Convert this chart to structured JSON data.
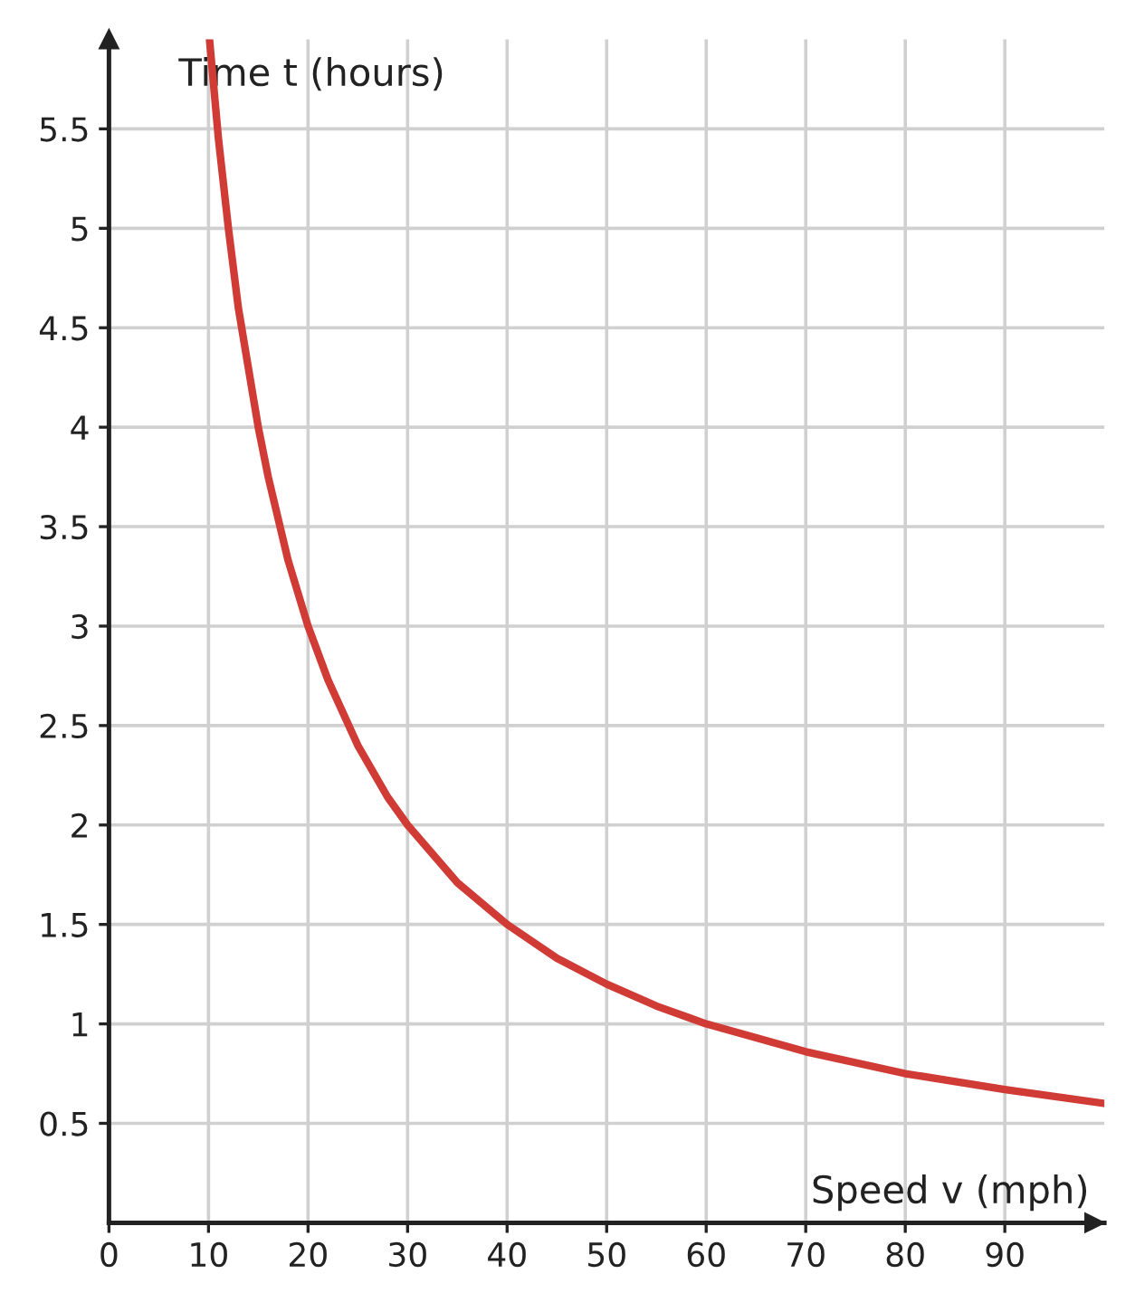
{
  "chart_data": {
    "type": "line",
    "xlabel": "Speed v (mph)",
    "ylabel": "Time t (hours)",
    "xlim": [
      0,
      100
    ],
    "ylim": [
      0,
      5.95
    ],
    "xticks": [
      {
        "value": 0,
        "label": "0"
      },
      10,
      20,
      30,
      40,
      50,
      60,
      70,
      80,
      90
    ],
    "yticks": [
      0.5,
      1,
      1.5,
      2,
      2.5,
      3,
      3.5,
      4,
      4.5,
      5,
      5.5
    ],
    "grid": true,
    "legend": false,
    "marker": "none",
    "line_style": "solid",
    "series": [
      {
        "color": "#d13b36",
        "x": [
          10.1,
          11,
          12,
          13,
          14,
          15,
          16,
          18,
          20,
          22,
          25,
          28,
          30,
          35,
          40,
          45,
          50,
          55,
          60,
          70,
          80,
          90,
          100
        ],
        "values": [
          5.95,
          5.45,
          5.0,
          4.6,
          4.3,
          4.0,
          3.75,
          3.33,
          3.0,
          2.73,
          2.4,
          2.14,
          2.0,
          1.71,
          1.5,
          1.33,
          1.2,
          1.09,
          1.0,
          0.86,
          0.75,
          0.67,
          0.6
        ]
      }
    ]
  }
}
